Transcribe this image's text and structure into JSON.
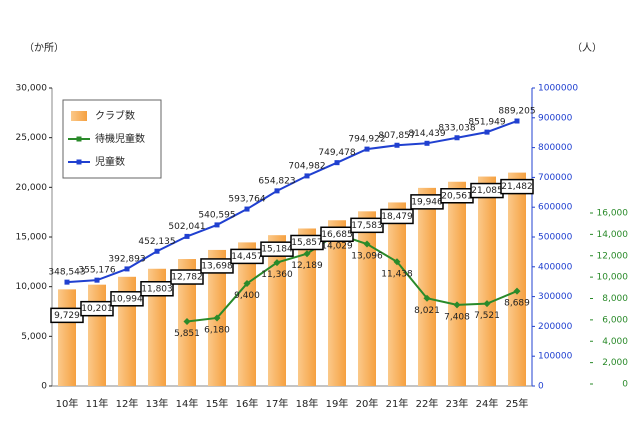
{
  "chart_data": {
    "type": "bar",
    "y_label": "（か所）",
    "y2_label": "（人）",
    "categories": [
      "10年",
      "11年",
      "12年",
      "13年",
      "14年",
      "15年",
      "16年",
      "17年",
      "18年",
      "19年",
      "20年",
      "21年",
      "22年",
      "23年",
      "24年",
      "25年"
    ],
    "series": [
      {
        "name": "クラブ数",
        "type": "bar",
        "color": "#f5a040",
        "axis": "y",
        "values": [
          9729,
          10201,
          10994,
          11803,
          12782,
          13698,
          14457,
          15184,
          15857,
          16685,
          17583,
          18479,
          19946,
          20561,
          21085,
          21482
        ],
        "value_labels": [
          "9,729",
          "10,201",
          "10,994",
          "11,803",
          "12,782",
          "13,698",
          "14,457",
          "15,184",
          "15,857",
          "16,685",
          "17,583",
          "18,479",
          "19,946",
          "20,561",
          "21,085",
          "21,482"
        ]
      },
      {
        "name": "待機児童数",
        "type": "line",
        "color": "#2a8a2a",
        "axis": "y3",
        "values": [
          null,
          null,
          null,
          null,
          5851,
          6180,
          9400,
          11360,
          12189,
          14029,
          13096,
          11438,
          8021,
          7408,
          7521,
          8689
        ],
        "value_labels": [
          null,
          null,
          null,
          null,
          "5,851",
          "6,180",
          "9,400",
          "11,360",
          "12,189",
          "14,029",
          "13,096",
          "11,438",
          "8,021",
          "7,408",
          "7,521",
          "8,689"
        ]
      },
      {
        "name": "児童数",
        "type": "line",
        "color": "#2040d0",
        "axis": "y2",
        "values": [
          348543,
          355176,
          392893,
          452135,
          502041,
          540595,
          593764,
          654823,
          704982,
          749478,
          794922,
          807857,
          814439,
          833038,
          851949,
          889205
        ],
        "value_labels": [
          "348,543",
          "355,176",
          "392,893",
          "452,135",
          "502,041",
          "540,595",
          "593,764",
          "654,823",
          "704,982",
          "749,478",
          "794,922",
          "807,857",
          "814,439",
          "833,038",
          "851,949",
          "889,205"
        ]
      }
    ],
    "ylim": [
      0,
      30000
    ],
    "yticks": [
      0,
      {
        "value": 5000,
        "label": "5,000"
      },
      {
        "value": 10000,
        "label": "10,000"
      },
      {
        "value": 15000,
        "label": "15,000"
      },
      {
        "value": 20000,
        "label": "20,000"
      },
      {
        "value": 25000,
        "label": "25,000"
      },
      {
        "value": 30000,
        "label": "30,000"
      }
    ],
    "y2lim": [
      0,
      1000000
    ],
    "y2ticks": [
      0,
      100000,
      200000,
      300000,
      400000,
      500000,
      600000,
      700000,
      800000,
      900000,
      1000000
    ],
    "y3lim": [
      0,
      16000
    ],
    "y3ticks": [
      0,
      {
        "value": 2000,
        "label": "2,000"
      },
      {
        "value": 4000,
        "label": "4,000"
      },
      {
        "value": 6000,
        "label": "6,000"
      },
      {
        "value": 8000,
        "label": "8,000"
      },
      {
        "value": 10000,
        "label": "10,000"
      },
      {
        "value": 12000,
        "label": "12,000"
      },
      {
        "value": 14000,
        "label": "14,000"
      },
      {
        "value": 16000,
        "label": "16,000"
      }
    ],
    "legend": "upper-left"
  }
}
